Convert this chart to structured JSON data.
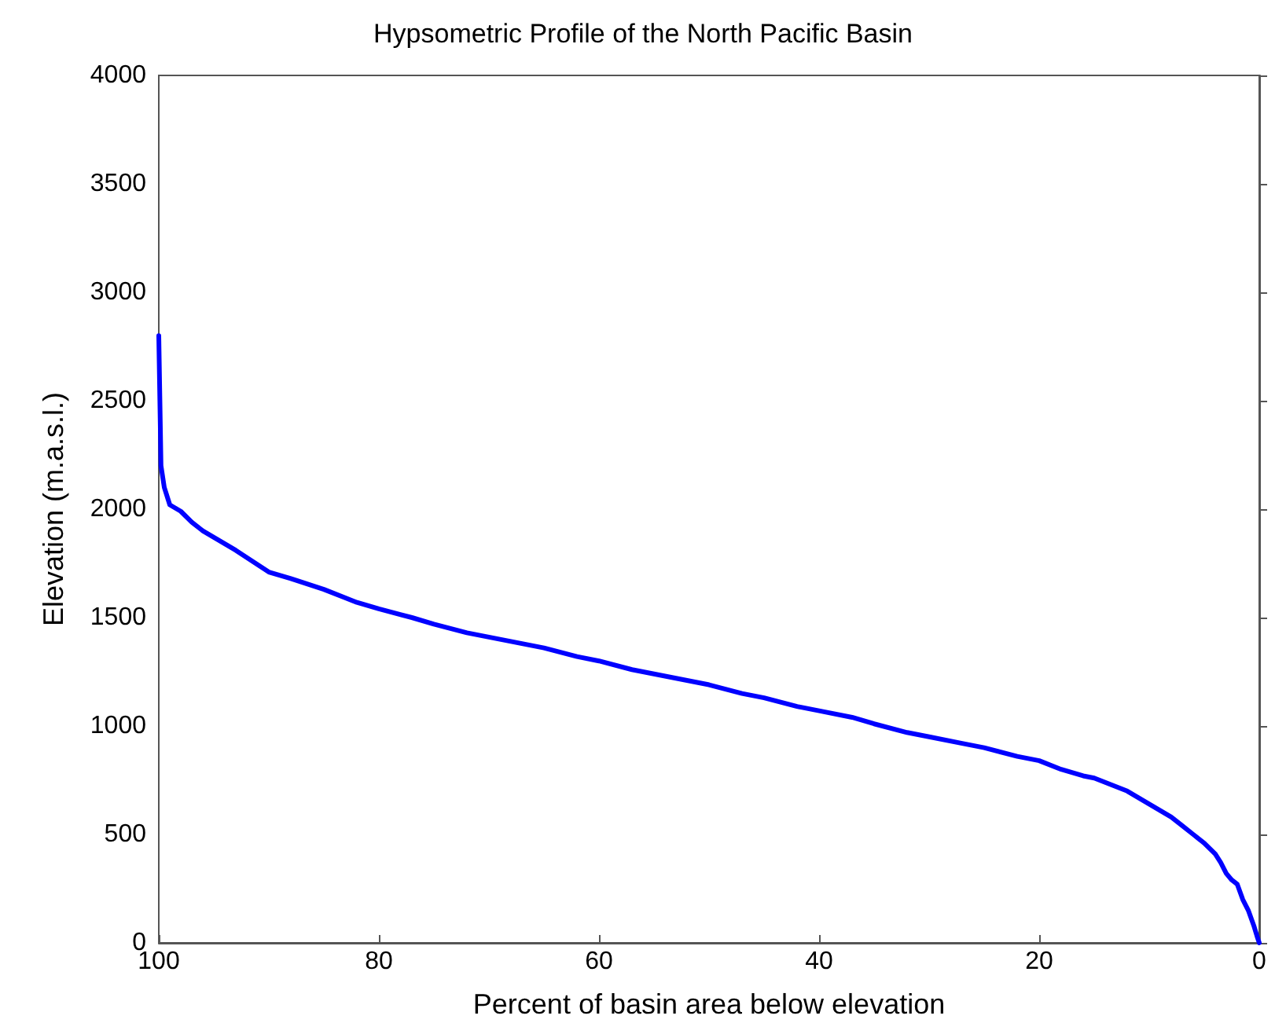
{
  "chart_data": {
    "type": "line",
    "title": "Hypsometric Profile of the North Pacific Basin",
    "xlabel": "Percent of basin area below elevation",
    "ylabel": "Elevation (m.a.s.l.)",
    "x": [
      100,
      99.9,
      99.8,
      99.5,
      99,
      98,
      97,
      96,
      95,
      93,
      90,
      88,
      85,
      82,
      80,
      77,
      75,
      72,
      70,
      67,
      65,
      62,
      60,
      57,
      55,
      52,
      50,
      47,
      45,
      42,
      40,
      37,
      35,
      32,
      30,
      27,
      25,
      22,
      20,
      18,
      16,
      15,
      13,
      12,
      11,
      10,
      9,
      8,
      7,
      6,
      5,
      4,
      3.5,
      3,
      2.5,
      2,
      1.5,
      1,
      0.5,
      0.2,
      0
    ],
    "series": [
      {
        "color": "#0000ff",
        "values": [
          2800,
          2500,
          2200,
          2100,
          2020,
          1990,
          1940,
          1900,
          1870,
          1810,
          1710,
          1680,
          1630,
          1570,
          1540,
          1500,
          1470,
          1430,
          1410,
          1380,
          1360,
          1320,
          1300,
          1260,
          1240,
          1210,
          1190,
          1150,
          1130,
          1090,
          1070,
          1040,
          1010,
          970,
          950,
          920,
          900,
          860,
          840,
          800,
          770,
          760,
          720,
          700,
          670,
          640,
          610,
          580,
          540,
          500,
          460,
          410,
          370,
          320,
          290,
          270,
          200,
          150,
          80,
          30,
          0
        ]
      }
    ],
    "xlim": [
      100,
      0
    ],
    "xticks": [
      100,
      80,
      60,
      40,
      20,
      0
    ],
    "ylim": [
      0,
      4000
    ],
    "yticks": [
      0,
      500,
      1000,
      1500,
      2000,
      2500,
      3000,
      3500,
      4000
    ],
    "grid": false,
    "marker": "none",
    "line_style": "solid"
  }
}
